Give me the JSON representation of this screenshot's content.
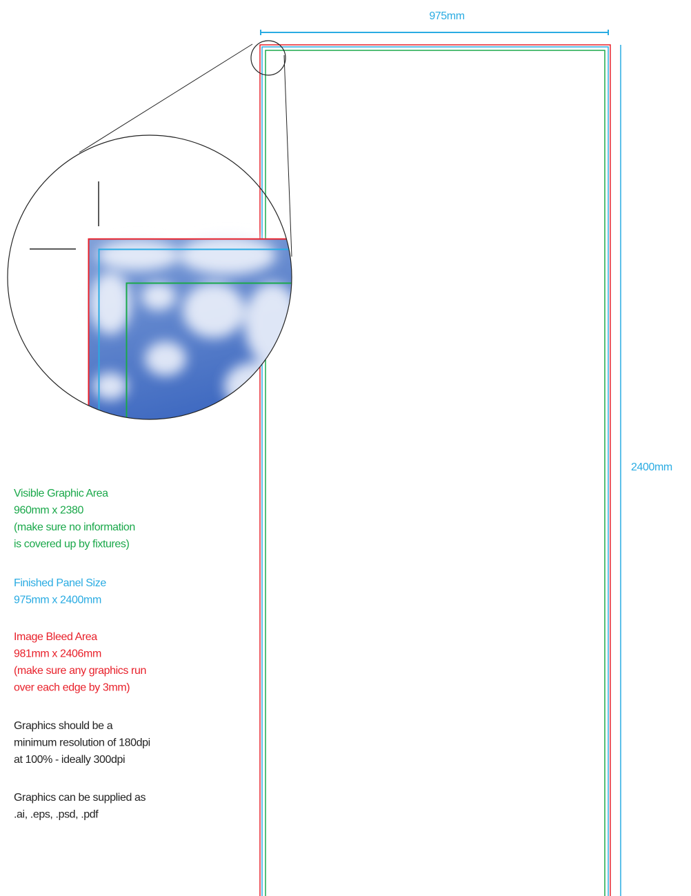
{
  "dimensions": {
    "width": "975mm",
    "height": "2400mm"
  },
  "notes": [
    {
      "lines": [
        "Visible Graphic Area",
        "960mm x 2380",
        "(make sure no information",
        "is covered up by fixtures)"
      ]
    },
    {
      "lines": [
        "Finished Panel Size",
        " 975mm x 2400mm"
      ]
    },
    {
      "lines": [
        "Image Bleed Area",
        "981mm x 2406mm",
        "(make sure any graphics run",
        "over each edge by 3mm)"
      ]
    },
    {
      "lines": [
        "Graphics should be a",
        "minimum resolution of 180dpi",
        "at 100% - ideally 300dpi"
      ]
    },
    {
      "lines": [
        "Graphics can be supplied as",
        ".ai, .eps, .psd, .pdf"
      ]
    }
  ]
}
